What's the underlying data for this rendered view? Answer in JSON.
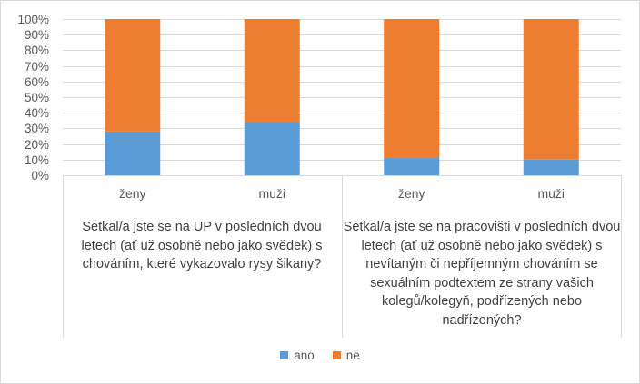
{
  "chart_data": {
    "type": "bar",
    "stacked": "percent",
    "y_ticks": [
      "0%",
      "10%",
      "20%",
      "30%",
      "40%",
      "50%",
      "60%",
      "70%",
      "80%",
      "90%",
      "100%"
    ],
    "ylim": [
      0,
      100
    ],
    "grid": true,
    "legend_position": "bottom",
    "groups": [
      {
        "label": "Setkal/a jste se na UP v posledních dvou letech (ať už osobně nebo jako svědek) s chováním, které vykazovalo rysy šikany?",
        "categories": [
          "ženy",
          "muži"
        ]
      },
      {
        "label": "Setkal/a jste se na pracovišti v posledních dvou letech (ať už osobně nebo jako svědek) s nevítaným či nepříjemným chováním se sexuálním podtextem ze strany vašich kolegů/kolegyň, podřízených nebo nadřízených?",
        "categories": [
          "ženy",
          "muži"
        ]
      }
    ],
    "categories": [
      "ženy",
      "muži",
      "ženy",
      "muži"
    ],
    "series": [
      {
        "name": "ano",
        "color": "#5b9bd5",
        "values": [
          28,
          34,
          11,
          10
        ]
      },
      {
        "name": "ne",
        "color": "#ed7d31",
        "values": [
          72,
          66,
          89,
          90
        ]
      }
    ]
  }
}
